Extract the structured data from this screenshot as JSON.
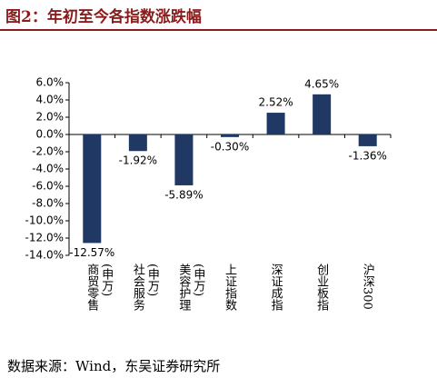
{
  "title": "图2：年初至今各指数涨跌幅",
  "source": "数据来源：Wind，东吴证券研究所",
  "chart_data": {
    "type": "bar",
    "categories": [
      "商贸零售(申万)",
      "社会服务(申万)",
      "美容护理(申万)",
      "上证指数",
      "深证成指",
      "创业板指",
      "沪深300"
    ],
    "values": [
      -12.57,
      -1.92,
      -5.89,
      -0.3,
      2.52,
      4.65,
      -1.36
    ],
    "value_labels": [
      "-12.57%",
      "-1.92%",
      "-5.89%",
      "-0.30%",
      "2.52%",
      "4.65%",
      "-1.36%"
    ],
    "color": "#1f3864",
    "ylim": [
      -14,
      6
    ],
    "yticks": [
      {
        "value": 6,
        "label": "6.0%"
      },
      {
        "value": 4,
        "label": "4.0%"
      },
      {
        "value": 2,
        "label": "2.0%"
      },
      {
        "value": 0,
        "label": "0.0%"
      },
      {
        "value": -2,
        "label": "-2.0%"
      },
      {
        "value": -4,
        "label": "-4.0%"
      },
      {
        "value": -6,
        "label": "-6.0%"
      },
      {
        "value": -8,
        "label": "-8.0%"
      },
      {
        "value": -10,
        "label": "-10.0%"
      },
      {
        "value": -12,
        "label": "-12.0%"
      },
      {
        "value": -14,
        "label": "-14.0%"
      }
    ]
  }
}
